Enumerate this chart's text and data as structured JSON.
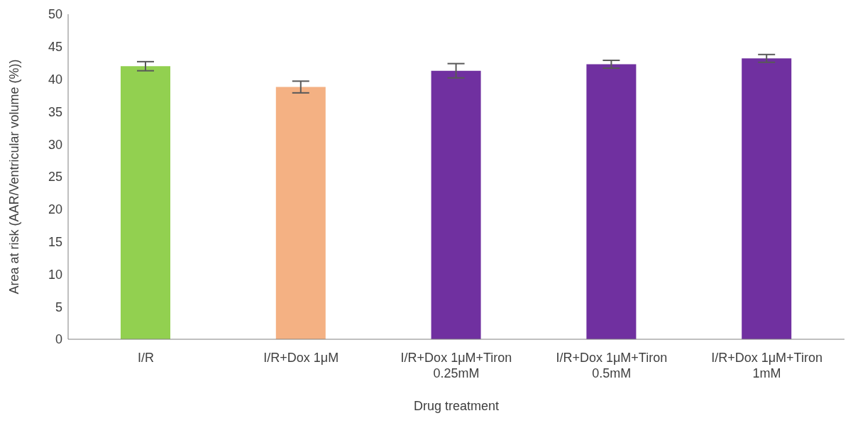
{
  "chart_data": {
    "type": "bar",
    "xlabel": "Drug treatment",
    "ylabel": "Area at risk (AAR/Ventricular volume (%))",
    "categories": [
      "I/R",
      "I/R+Dox 1μM",
      "I/R+Dox 1μM+Tiron 0.25mM",
      "I/R+Dox 1μM+Tiron 0.5mM",
      "I/R+Dox 1μM+Tiron 1mM"
    ],
    "values": [
      42.0,
      38.8,
      41.3,
      42.3,
      43.2
    ],
    "errors": [
      0.7,
      0.9,
      1.1,
      0.6,
      0.6
    ],
    "colors": [
      "#92d050",
      "#f4b183",
      "#7030a0",
      "#7030a0",
      "#7030a0"
    ],
    "ylim": [
      0,
      50
    ],
    "yticks": [
      0,
      5,
      10,
      15,
      20,
      25,
      30,
      35,
      40,
      45,
      50
    ],
    "grid": false,
    "legend": false
  }
}
